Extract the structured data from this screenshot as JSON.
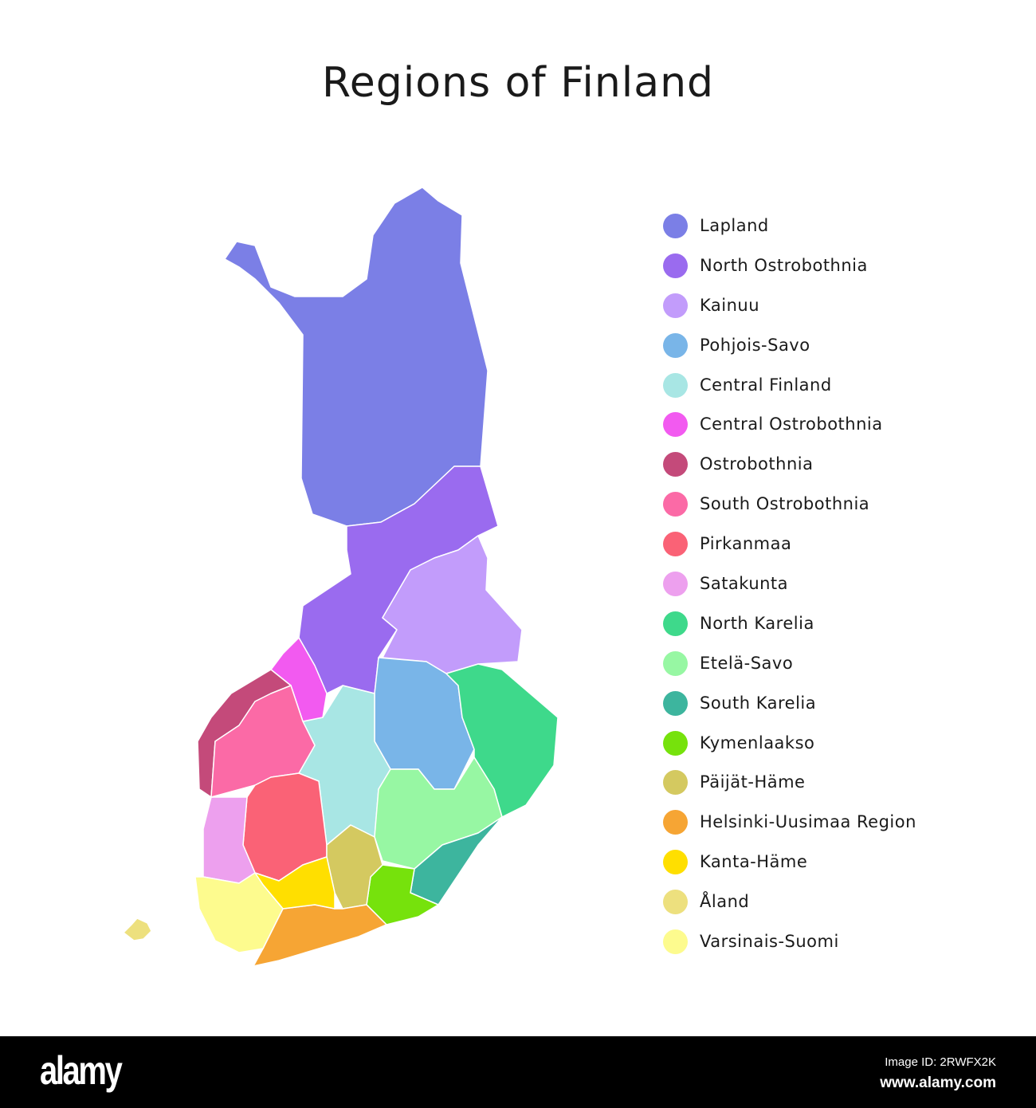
{
  "title": "Regions of Finland",
  "regions": [
    {
      "name": "Lapland",
      "color": "#7b7fe6"
    },
    {
      "name": "North Ostrobothnia",
      "color": "#9a6bef"
    },
    {
      "name": "Kainuu",
      "color": "#c29cfb"
    },
    {
      "name": "Pohjois-Savo",
      "color": "#79b5e8"
    },
    {
      "name": "Central Finland",
      "color": "#a8e6e4"
    },
    {
      "name": "Central Ostrobothnia",
      "color": "#f25af0"
    },
    {
      "name": "Ostrobothnia",
      "color": "#c44a7a"
    },
    {
      "name": "South Ostrobothnia",
      "color": "#fb6aa6"
    },
    {
      "name": "Pirkanmaa",
      "color": "#fa6276"
    },
    {
      "name": "Satakunta",
      "color": "#eda0ee"
    },
    {
      "name": "North Karelia",
      "color": "#3ed98b"
    },
    {
      "name": "Etelä-Savo",
      "color": "#97f7a3"
    },
    {
      "name": "South Karelia",
      "color": "#3db59e"
    },
    {
      "name": "Kymenlaakso",
      "color": "#76e20c"
    },
    {
      "name": "Päijät-Häme",
      "color": "#d4c960"
    },
    {
      "name": "Helsinki-Uusimaa Region",
      "color": "#f6a534"
    },
    {
      "name": "Kanta-Häme",
      "color": "#ffdf00"
    },
    {
      "name": "Åland",
      "color": "#ede07e"
    },
    {
      "name": "Varsinais-Suomi",
      "color": "#fdfb8e"
    }
  ],
  "footer": {
    "logo": "alamy",
    "image_id": "Image ID: 2RWFX2K",
    "site": "www.alamy.com"
  }
}
